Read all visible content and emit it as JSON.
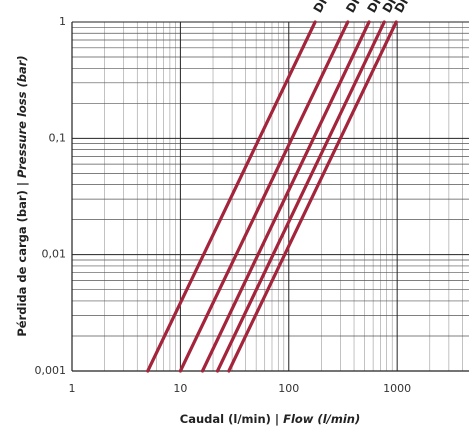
{
  "chart_data": {
    "type": "line",
    "log_x": true,
    "log_y": true,
    "grid": "major-minor",
    "xlabel": {
      "main": "Caudal (l/min) | ",
      "alt": "Flow (l/min)"
    },
    "ylabel": {
      "main": "Pérdida de carga (bar) | ",
      "alt": "Pressure loss (bar)"
    },
    "xlim": [
      1,
      4600
    ],
    "xticks": [
      1,
      10,
      100,
      1000
    ],
    "ylim": [
      0.001,
      1
    ],
    "yticks": [
      {
        "value": 0.001,
        "label": "0,001"
      },
      {
        "value": 0.01,
        "label": "0,01"
      },
      {
        "value": 0.1,
        "label": "0,1"
      },
      1
    ],
    "series": [
      {
        "name": "DI",
        "color": "#a3243b",
        "x": [
          5,
          175
        ],
        "values": [
          0.001,
          1
        ]
      },
      {
        "name": "DI",
        "color": "#a3243b",
        "x": [
          10,
          350
        ],
        "values": [
          0.001,
          1
        ]
      },
      {
        "name": "DI",
        "color": "#a3243b",
        "x": [
          16,
          550
        ],
        "values": [
          0.001,
          1
        ]
      },
      {
        "name": "DI",
        "color": "#a3243b",
        "x": [
          22,
          760
        ],
        "values": [
          0.001,
          1
        ]
      },
      {
        "name": "DI",
        "color": "#a3243b",
        "x": [
          28,
          980
        ],
        "values": [
          0.001,
          1
        ]
      }
    ]
  }
}
